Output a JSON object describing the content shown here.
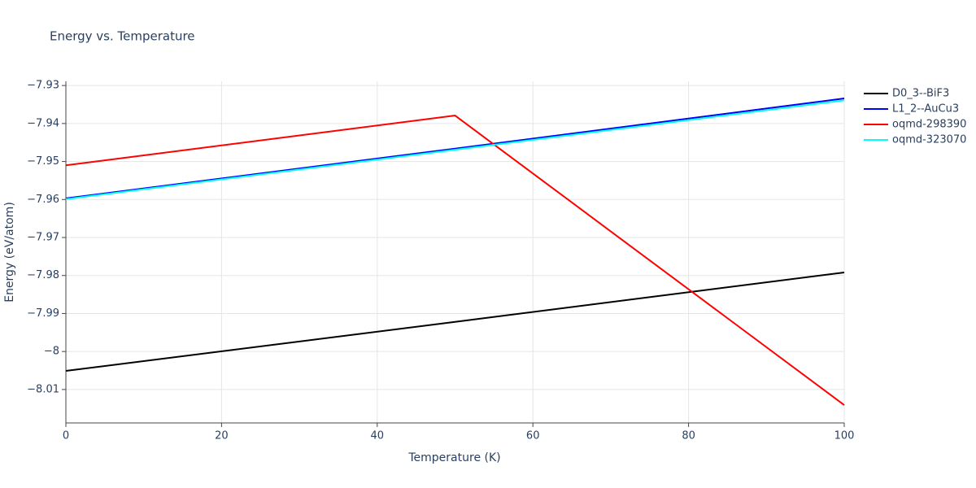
{
  "chart_data": {
    "type": "line",
    "title": "Energy vs. Temperature",
    "x_label": "Temperature (K)",
    "y_label": "Energy (eV/atom)",
    "x": [
      0,
      50,
      100
    ],
    "series": [
      {
        "name": "D0_3--BiF3",
        "color": "#000000",
        "values": [
          -8.0051,
          -7.9922,
          -7.9792
        ]
      },
      {
        "name": "L1_2--AuCu3",
        "color": "#0000ff",
        "values": [
          -7.9597,
          -7.9466,
          -7.9334
        ]
      },
      {
        "name": "oqmd-298390",
        "color": "#ff0000",
        "values": [
          -7.951,
          -7.9379,
          -8.0141
        ]
      },
      {
        "name": "oqmd-323070",
        "color": "#00ffff",
        "values": [
          -7.9599,
          -7.9469,
          -7.9339
        ]
      }
    ],
    "xlim": [
      0,
      100
    ],
    "xticks": [
      0,
      20,
      40,
      60,
      80,
      100
    ],
    "ylim": [
      -8.0188,
      -7.9289
    ],
    "yticks": [
      {
        "value": -7.93,
        "label": "−7.93"
      },
      {
        "value": -7.94,
        "label": "−7.94"
      },
      {
        "value": -7.95,
        "label": "−7.95"
      },
      {
        "value": -7.96,
        "label": "−7.96"
      },
      {
        "value": -7.97,
        "label": "−7.97"
      },
      {
        "value": -7.98,
        "label": "−7.98"
      },
      {
        "value": -7.99,
        "label": "−7.99"
      },
      {
        "value": -8,
        "label": "−8"
      },
      {
        "value": -8.01,
        "label": "−8.01"
      }
    ],
    "grid": true,
    "legend": "top-right"
  }
}
